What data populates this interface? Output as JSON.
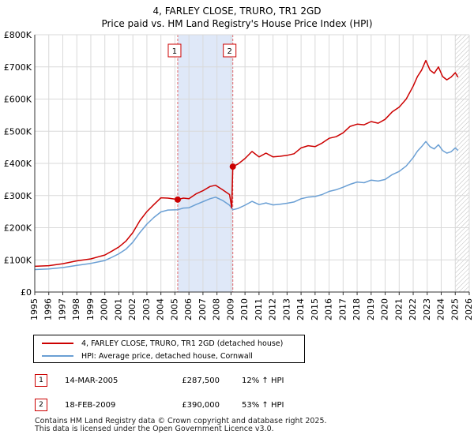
{
  "title_line1": "4, FARLEY CLOSE, TRURO, TR1 2GD",
  "title_line2": "Price paid vs. HM Land Registry's House Price Index (HPI)",
  "chart_data": {
    "type": "line",
    "xlim": [
      1995,
      2026
    ],
    "ylim": [
      0,
      800000
    ],
    "y_ticks": [
      0,
      100000,
      200000,
      300000,
      400000,
      500000,
      600000,
      700000,
      800000
    ],
    "y_tick_labels": [
      "£0",
      "£100K",
      "£200K",
      "£300K",
      "£400K",
      "£500K",
      "£600K",
      "£700K",
      "£800K"
    ],
    "x_ticks": [
      1995,
      1996,
      1997,
      1998,
      1999,
      2000,
      2001,
      2002,
      2003,
      2004,
      2005,
      2006,
      2007,
      2008,
      2009,
      2010,
      2011,
      2012,
      2013,
      2014,
      2015,
      2016,
      2017,
      2018,
      2019,
      2020,
      2021,
      2022,
      2023,
      2024,
      2025,
      2026
    ],
    "x_tick_labels": [
      "1995",
      "1996",
      "1997",
      "1998",
      "1999",
      "2000",
      "2001",
      "2002",
      "2003",
      "2004",
      "2005",
      "2006",
      "2007",
      "2008",
      "2009",
      "2010",
      "2011",
      "2012",
      "2013",
      "2014",
      "2015",
      "2016",
      "2017",
      "2018",
      "2019",
      "2020",
      "2021",
      "2022",
      "2023",
      "2024",
      "2025",
      "2026"
    ],
    "shaded_region": [
      2005.2,
      2009.13
    ],
    "hatched_from": 2025.0,
    "series": [
      {
        "name": "4, FARLEY CLOSE, TRURO, TR1 2GD (detached house)",
        "color": "#cc0000",
        "x": [
          1995,
          1996,
          1997,
          1998,
          1999,
          2000,
          2000.5,
          2001,
          2001.5,
          2002,
          2002.5,
          2003,
          2003.5,
          2004,
          2004.5,
          2005.2,
          2005.6,
          2006,
          2006.5,
          2007,
          2007.5,
          2007.9,
          2008.4,
          2008.9,
          2009.05,
          2009.13,
          2009.5,
          2010,
          2010.5,
          2011,
          2011.5,
          2012,
          2012.5,
          2013,
          2013.5,
          2014,
          2014.5,
          2015,
          2015.5,
          2016,
          2016.5,
          2017,
          2017.5,
          2018,
          2018.5,
          2019,
          2019.5,
          2020,
          2020.5,
          2021,
          2021.5,
          2022,
          2022.3,
          2022.6,
          2022.9,
          2023.2,
          2023.5,
          2023.8,
          2024.1,
          2024.4,
          2024.7,
          2025.0,
          2025.2
        ],
        "values": [
          80000,
          82000,
          88000,
          97000,
          103000,
          115000,
          127000,
          140000,
          158000,
          185000,
          222000,
          250000,
          272000,
          293000,
          292000,
          287500,
          292000,
          290000,
          305000,
          315000,
          328000,
          332000,
          318000,
          303000,
          262000,
          390000,
          398000,
          415000,
          437000,
          420000,
          432000,
          420000,
          422000,
          425000,
          430000,
          448000,
          455000,
          452000,
          463000,
          478000,
          483000,
          495000,
          515000,
          522000,
          520000,
          530000,
          525000,
          537000,
          560000,
          575000,
          600000,
          640000,
          670000,
          690000,
          720000,
          690000,
          680000,
          700000,
          670000,
          660000,
          668000,
          682000,
          668000
        ]
      },
      {
        "name": "HPI: Average price, detached house, Cornwall",
        "color": "#6a9fd4",
        "x": [
          1995,
          1996,
          1997,
          1998,
          1999,
          2000,
          2000.5,
          2001,
          2001.5,
          2002,
          2002.5,
          2003,
          2003.5,
          2004,
          2004.5,
          2005.2,
          2005.6,
          2006,
          2006.5,
          2007,
          2007.5,
          2007.9,
          2008.4,
          2008.9,
          2009.13,
          2009.5,
          2010,
          2010.5,
          2011,
          2011.5,
          2012,
          2012.5,
          2013,
          2013.5,
          2014,
          2014.5,
          2015,
          2015.5,
          2016,
          2016.5,
          2017,
          2017.5,
          2018,
          2018.5,
          2019,
          2019.5,
          2020,
          2020.5,
          2021,
          2021.5,
          2022,
          2022.3,
          2022.6,
          2022.9,
          2023.2,
          2023.5,
          2023.8,
          2024.1,
          2024.4,
          2024.7,
          2025.0,
          2025.2
        ],
        "values": [
          70000,
          72000,
          76000,
          83000,
          89000,
          98000,
          108000,
          119000,
          133000,
          155000,
          185000,
          211000,
          232000,
          249000,
          255000,
          256000,
          261000,
          262000,
          272000,
          281000,
          290000,
          295000,
          285000,
          270000,
          256000,
          260000,
          270000,
          282000,
          272000,
          277000,
          271000,
          273000,
          276000,
          280000,
          290000,
          295000,
          297000,
          303000,
          313000,
          318000,
          326000,
          335000,
          342000,
          340000,
          348000,
          345000,
          350000,
          365000,
          375000,
          392000,
          418000,
          438000,
          452000,
          468000,
          452000,
          445000,
          458000,
          440000,
          432000,
          436000,
          448000,
          440000
        ]
      }
    ],
    "markers": [
      {
        "label": "1",
        "x": 2005.2,
        "value": 287500
      },
      {
        "label": "2",
        "x": 2009.13,
        "value": 390000
      }
    ]
  },
  "legend": {
    "items": [
      {
        "label": "4, FARLEY CLOSE, TRURO, TR1 2GD (detached house)",
        "color": "#cc0000"
      },
      {
        "label": "HPI: Average price, detached house, Cornwall",
        "color": "#6a9fd4"
      }
    ]
  },
  "transactions": [
    {
      "num": "1",
      "date": "14-MAR-2005",
      "price": "£287,500",
      "hpi": "12% ↑ HPI"
    },
    {
      "num": "2",
      "date": "18-FEB-2009",
      "price": "£390,000",
      "hpi": "53% ↑ HPI"
    }
  ],
  "footer_line1": "Contains HM Land Registry data © Crown copyright and database right 2025.",
  "footer_line2": "This data is licensed under the Open Government Licence v3.0."
}
